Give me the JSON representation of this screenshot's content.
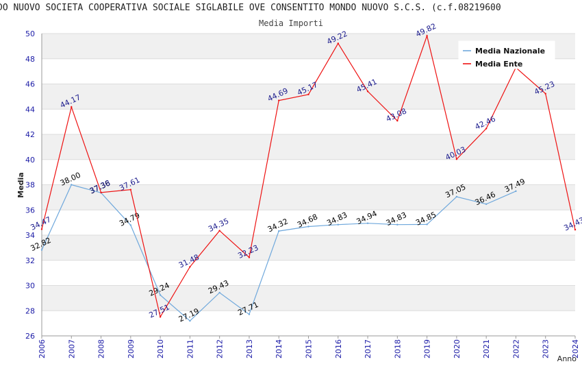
{
  "chart_data": {
    "type": "line",
    "title": "DO NUOVO SOCIETA COOPERATIVA SOCIALE SIGLABILE OVE CONSENTITO MONDO NUOVO S.C.S. (c.f.08219600",
    "subtitle": "Media Importi",
    "xlabel": "Anno",
    "ylabel": "Media",
    "ylim": [
      26,
      50
    ],
    "yticks": [
      "26",
      "28",
      "30",
      "32",
      "34",
      "36",
      "38",
      "40",
      "42",
      "44",
      "46",
      "48",
      "50"
    ],
    "x": [
      "2006",
      "2007",
      "2008",
      "2009",
      "2010",
      "2011",
      "2012",
      "2013",
      "2014",
      "2015",
      "2016",
      "2017",
      "2018",
      "2019",
      "2020",
      "2021",
      "2022",
      "2023",
      "2024"
    ],
    "grid": true,
    "legend_position": "top-right",
    "series": [
      {
        "name": "Media Nazionale",
        "color": "#6fa8dc",
        "label_color": "#000000",
        "values": [
          32.82,
          38.0,
          37.36,
          34.79,
          29.24,
          27.19,
          29.43,
          27.71,
          34.32,
          34.68,
          34.83,
          34.94,
          34.83,
          34.85,
          37.05,
          36.46,
          37.49,
          null,
          null
        ],
        "labels": [
          "32.82",
          "38.00",
          "37.36",
          "34.79",
          "29.24",
          "27.19",
          "29.43",
          "27.71",
          "34.32",
          "34.68",
          "34.83",
          "34.94",
          "34.83",
          "34.85",
          "37.05",
          "36.46",
          "37.49",
          null,
          null
        ]
      },
      {
        "name": "Media Ente",
        "color": "#ee1111",
        "label_color": "#1a1a8c",
        "values": [
          34.47,
          44.17,
          37.38,
          37.61,
          27.51,
          31.48,
          34.35,
          32.23,
          44.69,
          45.17,
          49.22,
          45.41,
          43.08,
          49.82,
          40.03,
          42.46,
          47.3,
          45.23,
          34.43
        ],
        "labels": [
          "34.47",
          "44.17",
          "37.38",
          "37.61",
          "27.51",
          "31.48",
          "34.35",
          "32.23",
          "44.69",
          "45.17",
          "49.22",
          "45.41",
          "43.08",
          "49.82",
          "40.03",
          "42.46",
          null,
          "45.23",
          "34.43"
        ]
      }
    ]
  }
}
